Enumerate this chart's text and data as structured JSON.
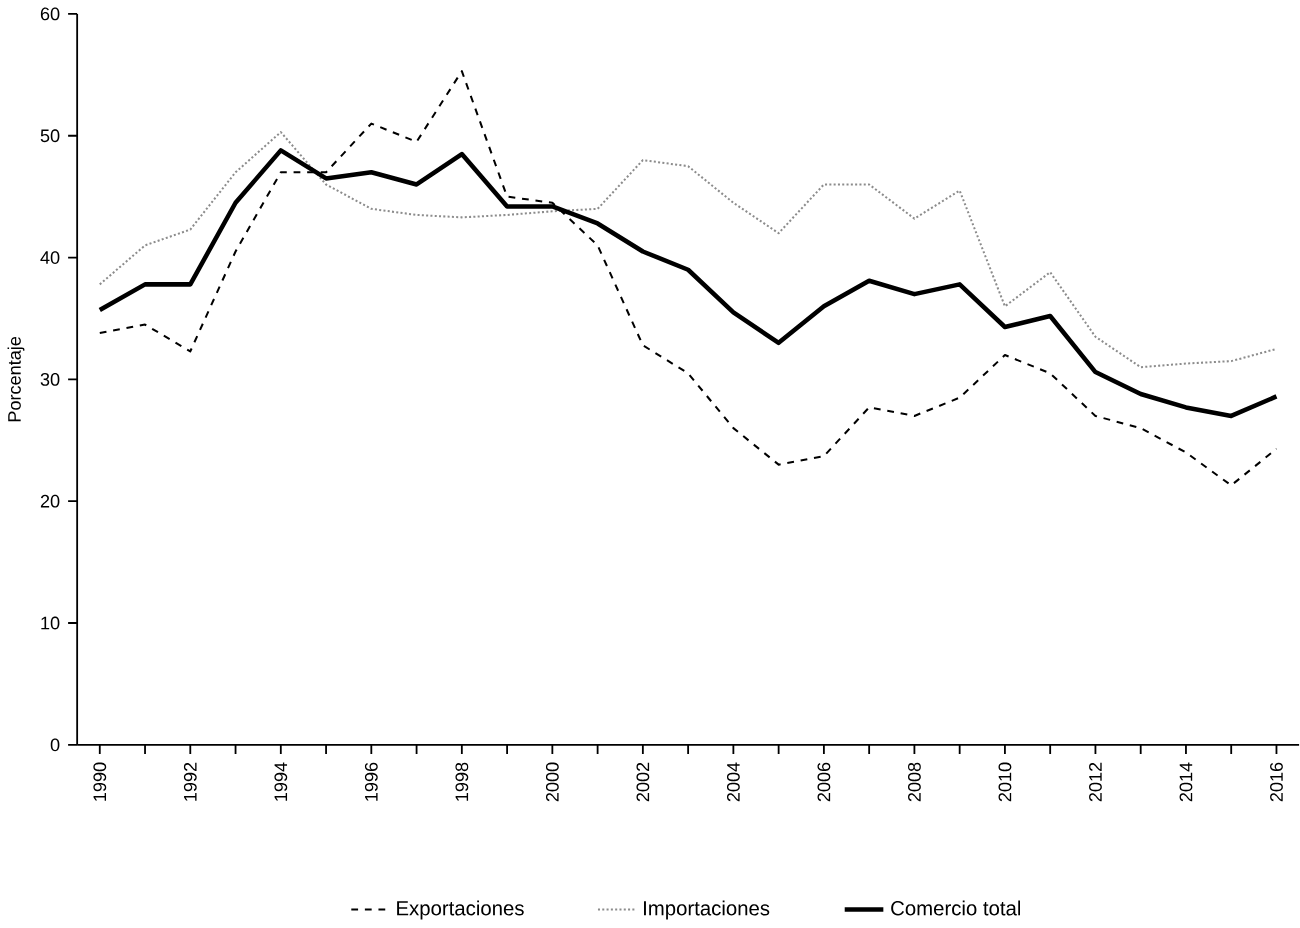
{
  "chart_data": {
    "type": "line",
    "ylabel": "Porcentaje",
    "x": [
      1990,
      1991,
      1992,
      1993,
      1994,
      1995,
      1996,
      1997,
      1998,
      1999,
      2000,
      2001,
      2002,
      2003,
      2004,
      2005,
      2006,
      2007,
      2008,
      2009,
      2010,
      2011,
      2012,
      2013,
      2014,
      2015,
      2016
    ],
    "series": [
      {
        "name": "Exportaciones",
        "color": "#000000",
        "line_style": "dashed",
        "values": [
          33.8,
          34.5,
          32.3,
          40.5,
          47,
          47,
          51,
          49.5,
          55.3,
          45,
          44.5,
          41,
          32.8,
          30.5,
          26,
          23,
          23.7,
          27.7,
          27,
          28.5,
          32,
          30.5,
          27,
          26,
          24,
          21.3,
          24.3
        ]
      },
      {
        "name": "Importaciones",
        "color": "#8c8c8c",
        "line_style": "dotted",
        "values": [
          37.8,
          41,
          42.3,
          47,
          50.3,
          46,
          44,
          43.5,
          43.3,
          43.5,
          43.8,
          44,
          48,
          47.5,
          44.5,
          42,
          46,
          46,
          43.2,
          45.5,
          36,
          38.8,
          33.5,
          31,
          31.3,
          31.5,
          32.5
        ]
      },
      {
        "name": "Comercio total",
        "color": "#000000",
        "line_style": "solid",
        "values": [
          35.7,
          37.8,
          37.8,
          44.5,
          48.8,
          46.5,
          47,
          46,
          48.5,
          44.2,
          44.2,
          42.8,
          40.5,
          39,
          35.5,
          33,
          36,
          38.1,
          37,
          37.8,
          34.3,
          35.2,
          30.6,
          28.8,
          27.7,
          27,
          28.6
        ]
      }
    ],
    "xlim": [
      1989.5,
      2016.5
    ],
    "xticks": [
      1990,
      {
        "value": 1991,
        "label": null
      },
      1992,
      {
        "value": 1993,
        "label": null
      },
      1994,
      {
        "value": 1995,
        "label": null
      },
      1996,
      {
        "value": 1997,
        "label": null
      },
      1998,
      {
        "value": 1999,
        "label": null
      },
      2000,
      {
        "value": 2001,
        "label": null
      },
      2002,
      {
        "value": 2003,
        "label": null
      },
      2004,
      {
        "value": 2005,
        "label": null
      },
      2006,
      {
        "value": 2007,
        "label": null
      },
      2008,
      {
        "value": 2009,
        "label": null
      },
      2010,
      {
        "value": 2011,
        "label": null
      },
      2012,
      {
        "value": 2013,
        "label": null
      },
      2014,
      {
        "value": 2015,
        "label": null
      },
      2016
    ],
    "ylim": [
      0,
      60
    ],
    "yticks": [
      0,
      10,
      20,
      30,
      40,
      50,
      60
    ],
    "legend": "bottom",
    "grid": false
  }
}
